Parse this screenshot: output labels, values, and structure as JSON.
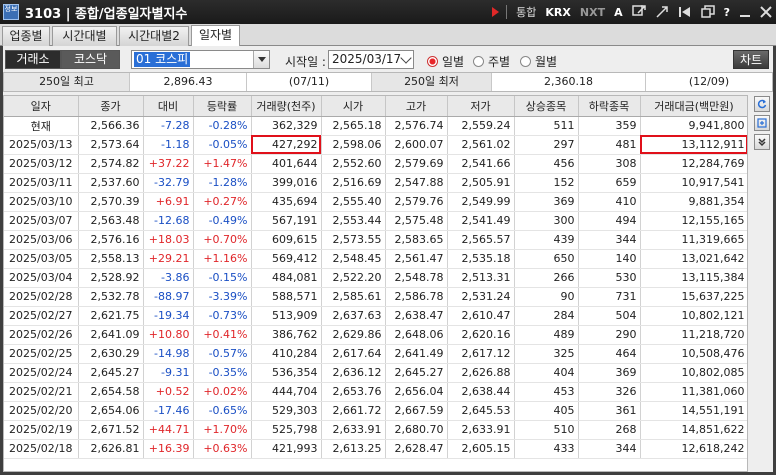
{
  "window": {
    "title": "3103 | 종합/업종일자별지수",
    "icon_text": "정보"
  },
  "toolbar": {
    "items": [
      "통합",
      "KRX",
      "NXT",
      "A",
      "?"
    ]
  },
  "tabs": [
    "업종별",
    "시간대별",
    "시간대별2",
    "일자별"
  ],
  "active_tab": 3,
  "controls": {
    "market_tabs": [
      "거래소",
      "코스닥"
    ],
    "sector_value": "01 코스피",
    "start_label": "시작일 :",
    "start_date": "2025/03/17",
    "period_options": [
      "일별",
      "주별",
      "월별"
    ],
    "selected_period": 0,
    "chart_button": "차트"
  },
  "summary": {
    "high_label": "250일 최고",
    "high_value": "2,896.43",
    "high_date": "(07/11)",
    "low_label": "250일 최저",
    "low_value": "2,360.18",
    "low_date": "(12/09)"
  },
  "table": {
    "headers": [
      "일자",
      "종가",
      "대비",
      "등락률",
      "거래량(천주)",
      "시가",
      "고가",
      "저가",
      "상승종목",
      "하락종목",
      "거래대금(백만원)"
    ],
    "rows": [
      [
        "현재",
        "2,566.36",
        "-7.28",
        "-0.28%",
        "362,329",
        "2,565.18",
        "2,576.74",
        "2,559.24",
        "511",
        "359",
        "9,941,800"
      ],
      [
        "2025/03/13",
        "2,573.64",
        "-1.18",
        "-0.05%",
        "427,292",
        "2,598.06",
        "2,600.07",
        "2,561.02",
        "297",
        "481",
        "13,112,911"
      ],
      [
        "2025/03/12",
        "2,574.82",
        "+37.22",
        "+1.47%",
        "401,644",
        "2,552.60",
        "2,579.69",
        "2,541.66",
        "456",
        "308",
        "12,284,769"
      ],
      [
        "2025/03/11",
        "2,537.60",
        "-32.79",
        "-1.28%",
        "399,016",
        "2,516.69",
        "2,547.88",
        "2,505.91",
        "152",
        "659",
        "10,917,541"
      ],
      [
        "2025/03/10",
        "2,570.39",
        "+6.91",
        "+0.27%",
        "435,694",
        "2,555.40",
        "2,579.76",
        "2,549.99",
        "369",
        "410",
        "9,881,354"
      ],
      [
        "2025/03/07",
        "2,563.48",
        "-12.68",
        "-0.49%",
        "567,191",
        "2,553.44",
        "2,575.48",
        "2,541.49",
        "300",
        "494",
        "12,155,165"
      ],
      [
        "2025/03/06",
        "2,576.16",
        "+18.03",
        "+0.70%",
        "609,615",
        "2,573.55",
        "2,583.65",
        "2,565.57",
        "439",
        "344",
        "11,319,665"
      ],
      [
        "2025/03/05",
        "2,558.13",
        "+29.21",
        "+1.16%",
        "569,412",
        "2,548.45",
        "2,561.47",
        "2,535.18",
        "650",
        "140",
        "13,021,642"
      ],
      [
        "2025/03/04",
        "2,528.92",
        "-3.86",
        "-0.15%",
        "484,081",
        "2,522.20",
        "2,548.78",
        "2,513.31",
        "266",
        "530",
        "13,115,384"
      ],
      [
        "2025/02/28",
        "2,532.78",
        "-88.97",
        "-3.39%",
        "588,571",
        "2,585.61",
        "2,586.78",
        "2,531.24",
        "90",
        "731",
        "15,637,225"
      ],
      [
        "2025/02/27",
        "2,621.75",
        "-19.34",
        "-0.73%",
        "513,909",
        "2,637.63",
        "2,638.47",
        "2,610.47",
        "284",
        "504",
        "10,802,121"
      ],
      [
        "2025/02/26",
        "2,641.09",
        "+10.80",
        "+0.41%",
        "386,762",
        "2,629.86",
        "2,648.06",
        "2,620.16",
        "489",
        "290",
        "11,218,720"
      ],
      [
        "2025/02/25",
        "2,630.29",
        "-14.98",
        "-0.57%",
        "410,284",
        "2,617.64",
        "2,641.49",
        "2,617.12",
        "325",
        "464",
        "10,508,476"
      ],
      [
        "2025/02/24",
        "2,645.27",
        "-9.31",
        "-0.35%",
        "536,354",
        "2,636.12",
        "2,645.27",
        "2,626.88",
        "404",
        "369",
        "10,802,085"
      ],
      [
        "2025/02/21",
        "2,654.58",
        "+0.52",
        "+0.02%",
        "444,704",
        "2,653.76",
        "2,656.04",
        "2,638.44",
        "453",
        "326",
        "11,381,060"
      ],
      [
        "2025/02/20",
        "2,654.06",
        "-17.46",
        "-0.65%",
        "529,303",
        "2,661.72",
        "2,667.59",
        "2,645.53",
        "405",
        "361",
        "14,551,191"
      ],
      [
        "2025/02/19",
        "2,671.52",
        "+44.71",
        "+1.70%",
        "525,798",
        "2,633.91",
        "2,680.70",
        "2,633.91",
        "510",
        "268",
        "14,851,622"
      ],
      [
        "2025/02/18",
        "2,626.81",
        "+16.39",
        "+0.63%",
        "421,993",
        "2,613.25",
        "2,628.47",
        "2,605.15",
        "433",
        "344",
        "12,618,242"
      ]
    ]
  }
}
